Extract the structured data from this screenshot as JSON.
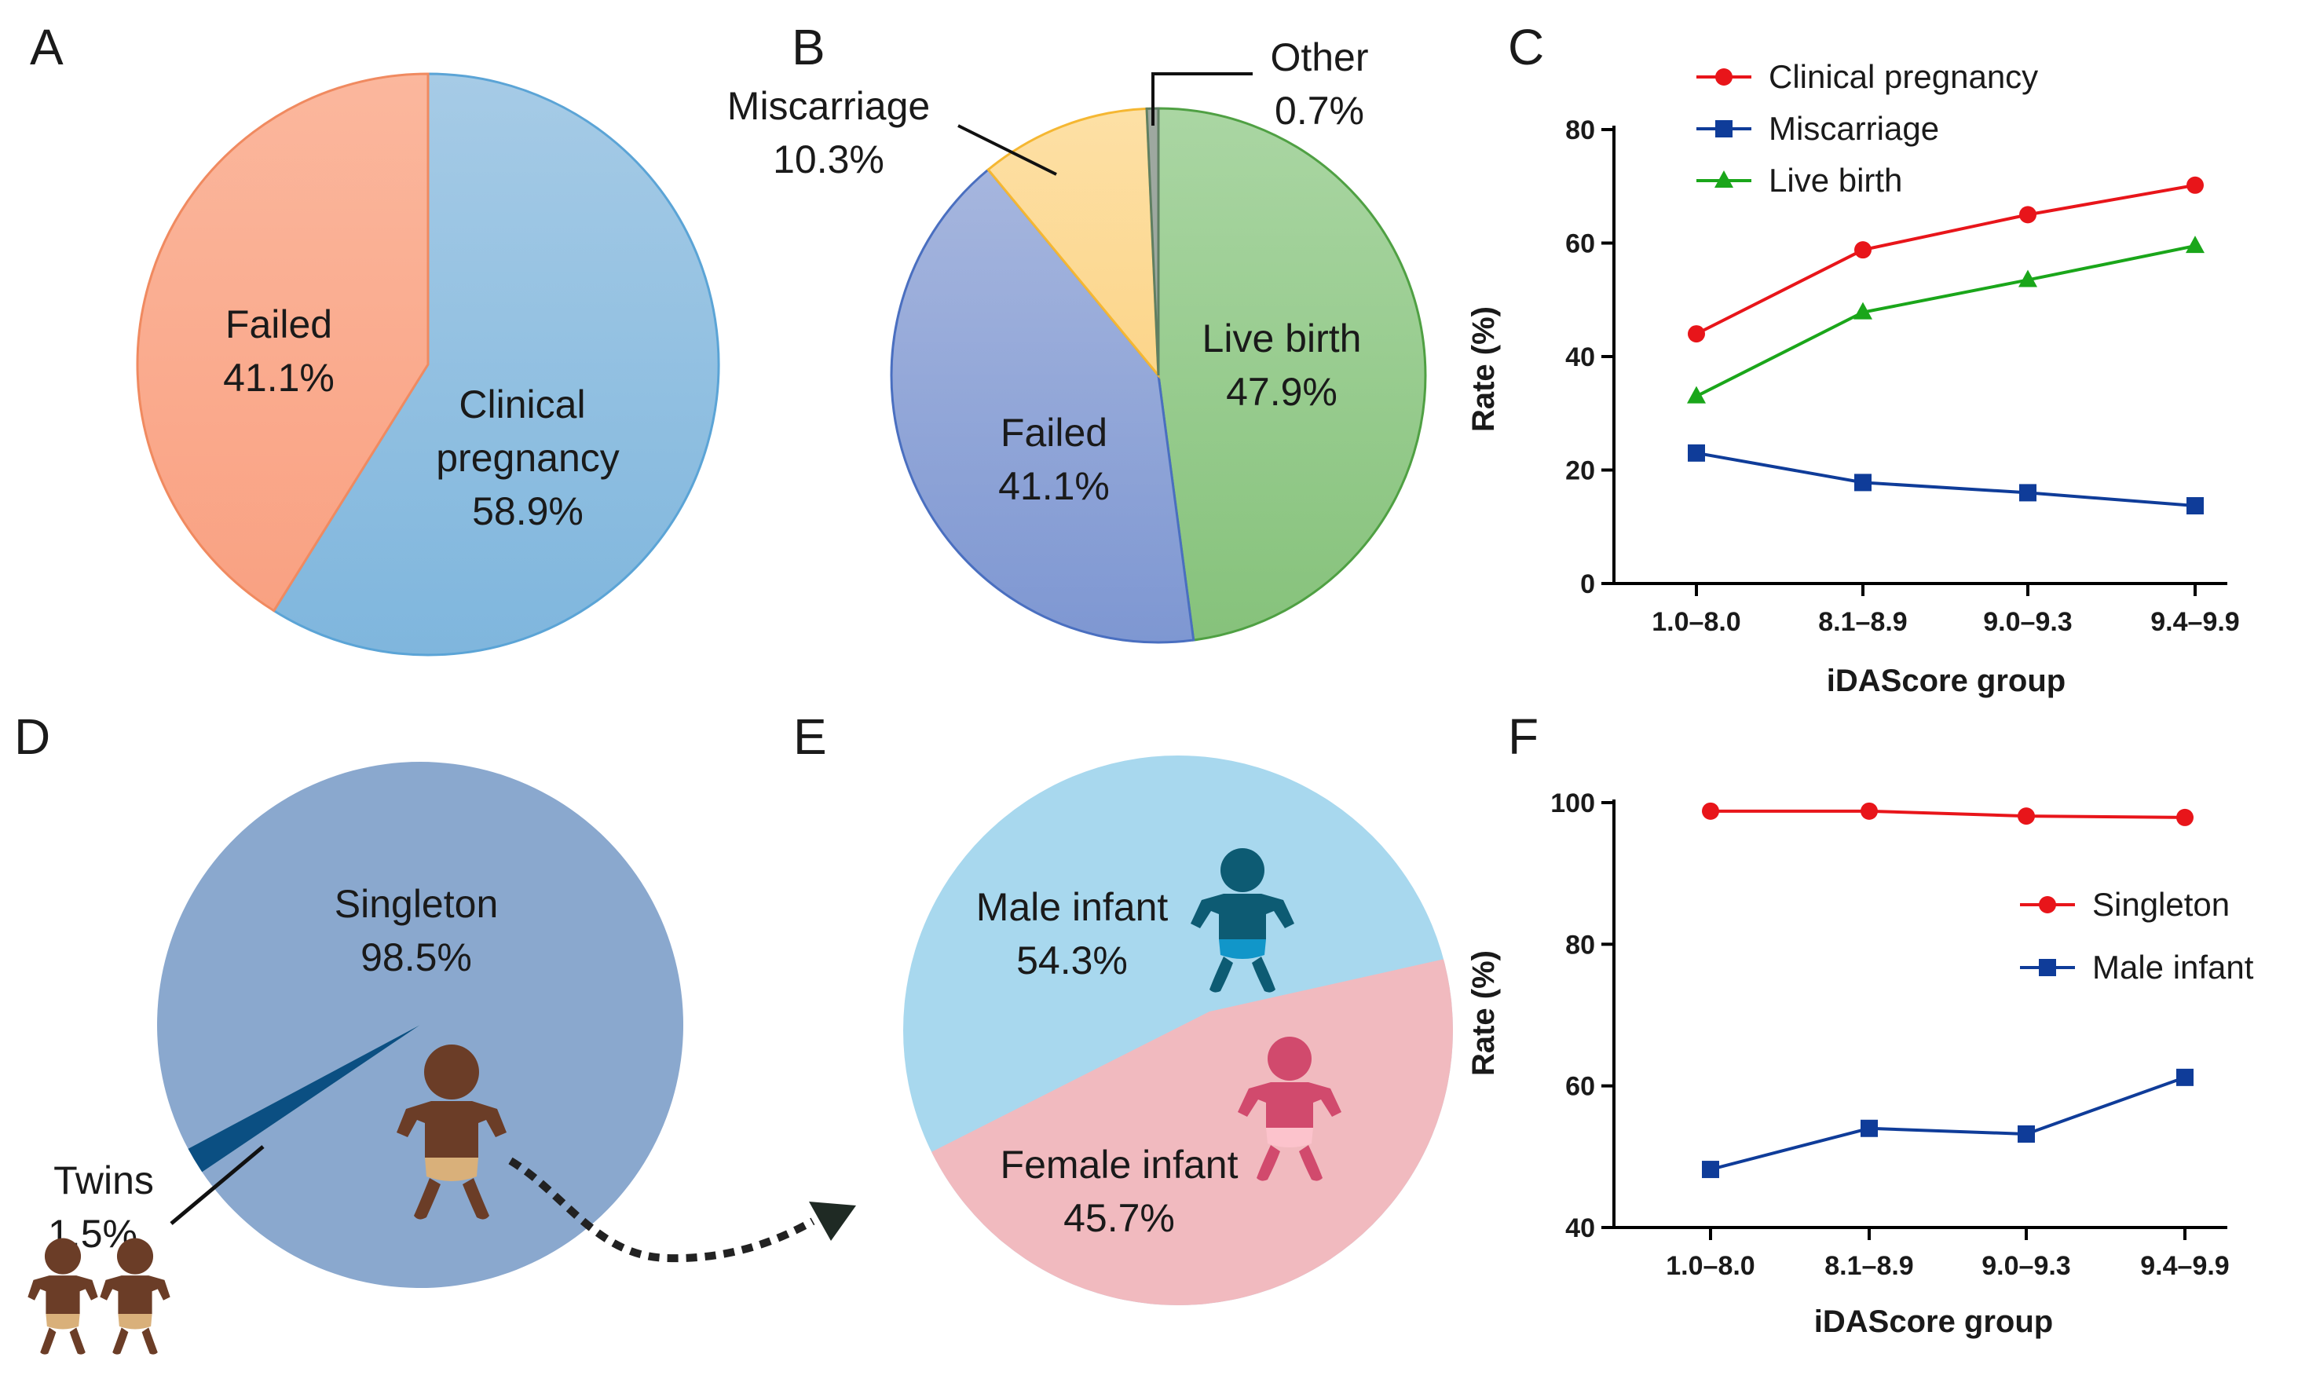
{
  "colors": {
    "clinical_pregnancy": "#e8151a",
    "miscarriage": "#0f3c99",
    "live_birth": "#1aa61a",
    "singleton": "#e8151a",
    "male_infant": "#0f3c99"
  },
  "panels": {
    "A": "A",
    "B": "B",
    "C": "C",
    "D": "D",
    "E": "E",
    "F": "F"
  },
  "icons": {
    "baby_brown": "baby-icon",
    "twins": "twin-babies-icon",
    "baby_boy": "baby-boy-icon",
    "baby_girl": "baby-girl-icon",
    "arrow": "dotted-arrow-icon"
  },
  "pieA": {
    "failed_name": "Failed",
    "failed_pct": "41.1%",
    "cp_name1": "Clinical",
    "cp_name2": "pregnancy",
    "cp_pct": "58.9%"
  },
  "pieB": {
    "mis_name": "Miscarriage",
    "mis_pct": "10.3%",
    "other_name": "Other",
    "other_pct": "0.7%",
    "lb_name": "Live birth",
    "lb_pct": "47.9%",
    "failed_name": "Failed",
    "failed_pct": "41.1%"
  },
  "pieD": {
    "single_name": "Singleton",
    "single_pct": "98.5%",
    "twins_name": "Twins",
    "twins_pct": "1.5%"
  },
  "pieE": {
    "male_name": "Male infant",
    "male_pct": "54.3%",
    "female_name": "Female infant",
    "female_pct": "45.7%"
  },
  "chart_data": [
    {
      "panel": "A",
      "type": "pie",
      "slices": [
        {
          "label": "Clinical pregnancy",
          "value": 58.9
        },
        {
          "label": "Failed",
          "value": 41.1
        }
      ]
    },
    {
      "panel": "B",
      "type": "pie",
      "slices": [
        {
          "label": "Live birth",
          "value": 47.9
        },
        {
          "label": "Failed",
          "value": 41.1
        },
        {
          "label": "Miscarriage",
          "value": 10.3
        },
        {
          "label": "Other",
          "value": 0.7
        }
      ]
    },
    {
      "panel": "C",
      "type": "line",
      "categories": [
        "1.0–8.0",
        "8.1–8.9",
        "9.0–9.3",
        "9.4–9.9"
      ],
      "series": [
        {
          "name": "Clinical pregnancy",
          "values": [
            44,
            58.8,
            65,
            70.2
          ]
        },
        {
          "name": "Miscarriage",
          "values": [
            23,
            17.8,
            16,
            13.7
          ]
        },
        {
          "name": "Live birth",
          "values": [
            33,
            47.8,
            53.5,
            59.5
          ]
        }
      ],
      "xlabel": "iDAScore group",
      "ylabel": "Rate (%)",
      "ylim": [
        0,
        80
      ],
      "yticks": [
        "0",
        "20",
        "40",
        "60",
        "80"
      ],
      "legend": "top-left"
    },
    {
      "panel": "D",
      "type": "pie",
      "slices": [
        {
          "label": "Singleton",
          "value": 98.5
        },
        {
          "label": "Twins",
          "value": 1.5
        }
      ]
    },
    {
      "panel": "E",
      "type": "pie",
      "slices": [
        {
          "label": "Male infant",
          "value": 54.3
        },
        {
          "label": "Female infant",
          "value": 45.7
        }
      ]
    },
    {
      "panel": "F",
      "type": "line",
      "categories": [
        "1.0–8.0",
        "8.1–8.9",
        "9.0–9.3",
        "9.4–9.9"
      ],
      "series": [
        {
          "name": "Singleton",
          "values": [
            98.8,
            98.8,
            98.1,
            97.9
          ]
        },
        {
          "name": "Male infant",
          "values": [
            48.2,
            54,
            53.2,
            61.2
          ]
        }
      ],
      "xlabel": "iDAScore group",
      "ylabel": "Rate (%)",
      "ylim": [
        40,
        100
      ],
      "yticks": [
        "40",
        "60",
        "80",
        "100"
      ],
      "legend": "right"
    }
  ]
}
